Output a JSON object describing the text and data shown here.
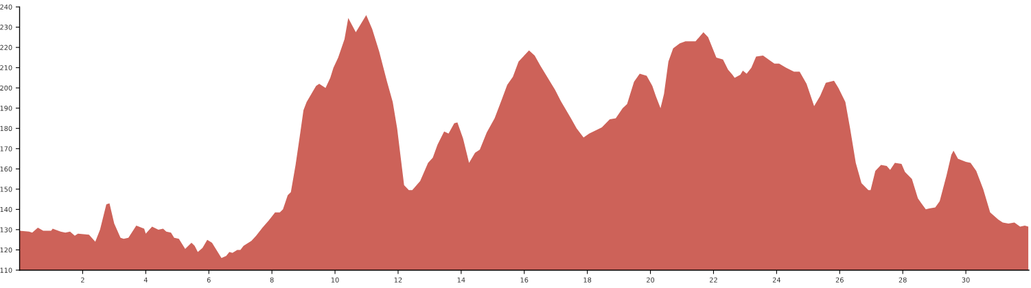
{
  "chart_data": {
    "type": "area",
    "x": [
      0,
      0.3,
      0.4,
      0.58,
      0.75,
      1.0,
      1.05,
      1.3,
      1.45,
      1.6,
      1.75,
      1.85,
      2.2,
      2.4,
      2.55,
      2.75,
      2.85,
      3.0,
      3.2,
      3.3,
      3.45,
      3.7,
      3.95,
      4.0,
      4.2,
      4.4,
      4.55,
      4.65,
      4.8,
      4.9,
      5.05,
      5.25,
      5.45,
      5.55,
      5.65,
      5.8,
      5.95,
      6.1,
      6.4,
      6.55,
      6.65,
      6.75,
      6.9,
      7.0,
      7.1,
      7.35,
      7.5,
      7.7,
      7.9,
      8.1,
      8.25,
      8.35,
      8.5,
      8.6,
      8.75,
      8.9,
      9.0,
      9.1,
      9.25,
      9.4,
      9.5,
      9.7,
      9.85,
      9.95,
      10.1,
      10.3,
      10.42,
      10.66,
      10.99,
      11.18,
      11.4,
      11.65,
      11.83,
      11.97,
      12.19,
      12.34,
      12.45,
      12.7,
      12.95,
      13.1,
      13.25,
      13.46,
      13.6,
      13.78,
      13.88,
      14.06,
      14.25,
      14.44,
      14.59,
      14.81,
      15.06,
      15.28,
      15.46,
      15.64,
      15.82,
      16.15,
      16.33,
      16.51,
      16.98,
      17.16,
      17.48,
      17.66,
      17.88,
      18.06,
      18.46,
      18.71,
      18.9,
      19.12,
      19.26,
      19.48,
      19.66,
      19.88,
      20.06,
      20.17,
      20.32,
      20.43,
      20.57,
      20.72,
      20.93,
      21.11,
      21.43,
      21.68,
      21.83,
      22.09,
      22.3,
      22.46,
      22.6,
      22.67,
      22.85,
      22.93,
      23.05,
      23.2,
      23.35,
      23.57,
      23.79,
      23.93,
      24.08,
      24.3,
      24.55,
      24.73,
      24.95,
      25.19,
      25.38,
      25.56,
      25.82,
      25.96,
      26.18,
      26.33,
      26.51,
      26.69,
      26.91,
      26.98,
      27.13,
      27.31,
      27.49,
      27.6,
      27.75,
      27.96,
      28.07,
      28.29,
      28.48,
      28.59,
      28.73,
      28.84,
      29.03,
      29.17,
      29.39,
      29.54,
      29.61,
      29.75,
      30.0,
      30.15,
      30.33,
      30.55,
      30.77,
      31.03,
      31.17,
      31.35,
      31.54,
      31.72,
      31.87,
      31.98
    ],
    "values": [
      129.5,
      129,
      128.5,
      131,
      129.5,
      129.5,
      130.5,
      129,
      128.5,
      129,
      127,
      128,
      127.5,
      124,
      130,
      142.5,
      143,
      133,
      126,
      125.5,
      126,
      132,
      130.5,
      128,
      131.5,
      130,
      130.5,
      129,
      128.5,
      126,
      125.5,
      120.5,
      123.5,
      122,
      119,
      121,
      125,
      123.5,
      116,
      117,
      119,
      118.5,
      120,
      120,
      122,
      124.5,
      127,
      131,
      134.5,
      138.5,
      138.5,
      140,
      147,
      148.5,
      162,
      178,
      189,
      193,
      197,
      201,
      202,
      200,
      205,
      210,
      215,
      224,
      234.5,
      227.5,
      236,
      229,
      218,
      203,
      193,
      180,
      152,
      149.5,
      149.5,
      154,
      163,
      165.5,
      172,
      178.5,
      177.5,
      182.5,
      183,
      175,
      163,
      168,
      169.5,
      178,
      185,
      194,
      201.5,
      205.5,
      213,
      218.5,
      216,
      211,
      199,
      193.5,
      185,
      180,
      175.5,
      177.5,
      180.5,
      184.5,
      185,
      190,
      192,
      203,
      207,
      206,
      201,
      196,
      190,
      197,
      213,
      219.5,
      222,
      223,
      223,
      227.5,
      225,
      215,
      214,
      209,
      206.5,
      205,
      206.5,
      208.5,
      207,
      210,
      215.5,
      216,
      213.5,
      212,
      212,
      210,
      208,
      208,
      202,
      191,
      196,
      202.5,
      203.5,
      200,
      193,
      180,
      163,
      153,
      149.5,
      149.5,
      159,
      162,
      161.5,
      159.5,
      163,
      162.5,
      158.5,
      155,
      145.5,
      143,
      140,
      140.5,
      141,
      144,
      157,
      167,
      169,
      165,
      163.5,
      163,
      159,
      150,
      138.5,
      135,
      133.5,
      133,
      133.5,
      131.5,
      132,
      131.5
    ],
    "color": "#cd6259",
    "xlim": [
      0,
      32
    ],
    "xticks": [
      2,
      4,
      6,
      8,
      10,
      12,
      14,
      16,
      18,
      20,
      22,
      24,
      26,
      28,
      30
    ],
    "ylim": [
      110,
      240
    ],
    "yticks": [
      110,
      120,
      130,
      140,
      150,
      160,
      170,
      180,
      190,
      200,
      210,
      220,
      230,
      240
    ]
  }
}
